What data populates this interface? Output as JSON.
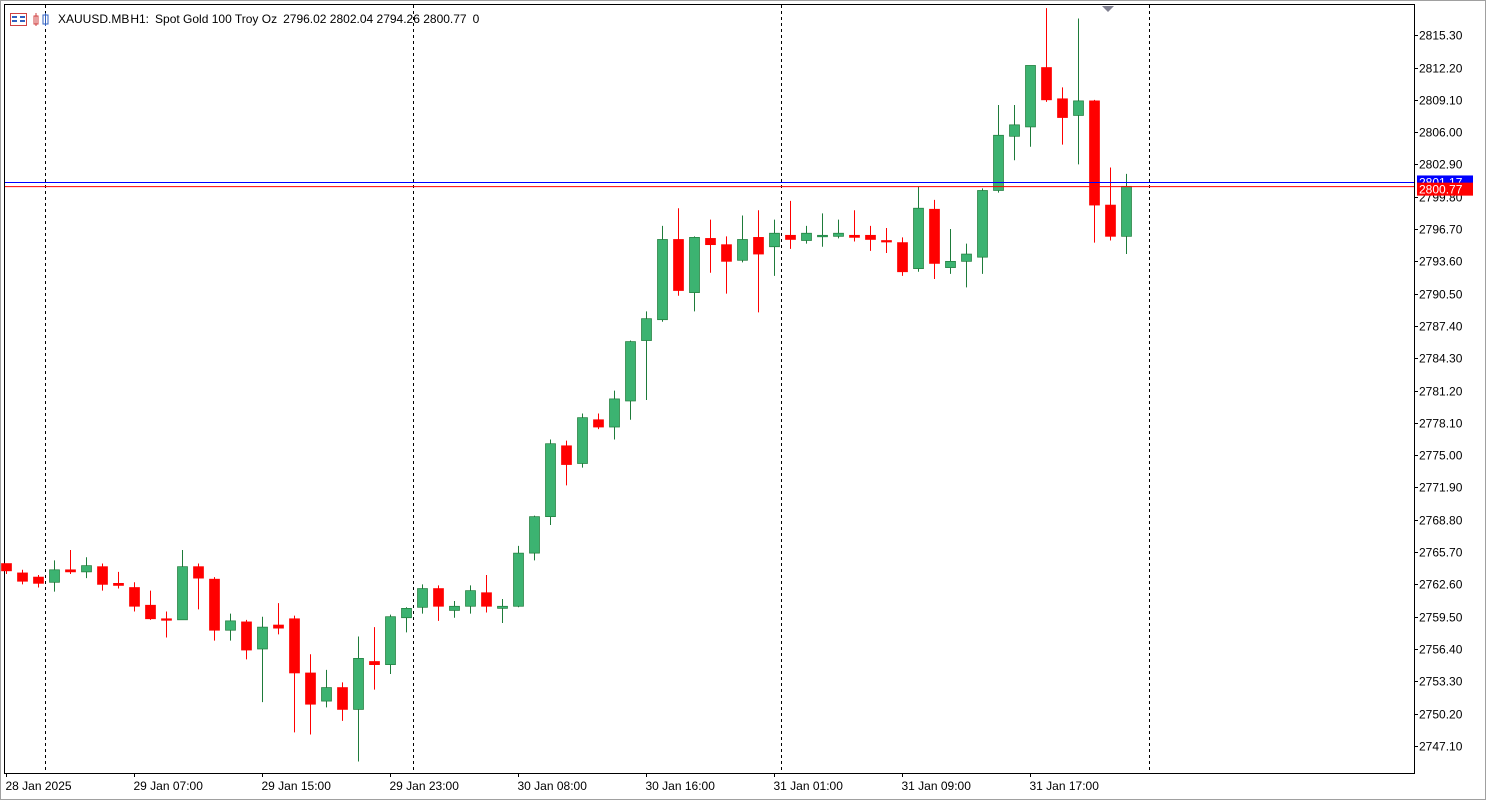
{
  "header": {
    "symbol": "XAUUSD.MB",
    "timeframe": "H1:",
    "description": "Spot Gold 100 Troy Oz",
    "ohlc": "2796.02 2802.04 2794.26 2800.77",
    "volume": "0"
  },
  "colors": {
    "bull": "#3cb371",
    "bear": "#ff0000",
    "bid_line": "#ff0000",
    "ask_line": "#0000ff",
    "grid": "#000000",
    "axis": "#000000"
  },
  "price_labels": {
    "bid": "2800.77",
    "ask": "2801.17"
  },
  "chart_data": {
    "type": "candlestick",
    "timeframe": "H1",
    "ylim": [
      2744.5,
      2818.2
    ],
    "y_ticks": [
      "2815.30",
      "2812.20",
      "2809.10",
      "2806.00",
      "2802.90",
      "2799.80",
      "2796.70",
      "2793.60",
      "2790.50",
      "2787.40",
      "2784.30",
      "2781.20",
      "2778.10",
      "2775.00",
      "2771.90",
      "2768.80",
      "2765.70",
      "2762.60",
      "2759.50",
      "2756.40",
      "2753.30",
      "2750.20",
      "2747.10"
    ],
    "x_labels": [
      {
        "bar": 0,
        "label": "28 Jan 2025"
      },
      {
        "bar": 8,
        "label": "29 Jan 07:00"
      },
      {
        "bar": 16,
        "label": "29 Jan 15:00"
      },
      {
        "bar": 24,
        "label": "29 Jan 23:00"
      },
      {
        "bar": 32,
        "label": "30 Jan 08:00"
      },
      {
        "bar": 40,
        "label": "30 Jan 16:00"
      },
      {
        "bar": 48,
        "label": "31 Jan 01:00"
      },
      {
        "bar": 56,
        "label": "31 Jan 09:00"
      },
      {
        "bar": 64,
        "label": "31 Jan 17:00"
      }
    ],
    "day_separators": [
      2,
      25,
      48,
      71
    ],
    "bid": 2800.77,
    "ask": 2801.17,
    "ohlc": [
      [
        2764.6,
        2764.6,
        2763.6,
        2763.9
      ],
      [
        2763.7,
        2764.0,
        2762.6,
        2762.9
      ],
      [
        2763.3,
        2763.5,
        2762.3,
        2762.7
      ],
      [
        2762.8,
        2764.9,
        2761.9,
        2764.0
      ],
      [
        2764.0,
        2765.9,
        2763.6,
        2763.8
      ],
      [
        2763.8,
        2765.2,
        2763.2,
        2764.4
      ],
      [
        2764.3,
        2764.6,
        2762.0,
        2762.6
      ],
      [
        2762.7,
        2763.8,
        2762.2,
        2762.5
      ],
      [
        2762.3,
        2762.8,
        2760.0,
        2760.5
      ],
      [
        2760.6,
        2762.0,
        2759.2,
        2759.3
      ],
      [
        2759.3,
        2760.0,
        2757.5,
        2759.2
      ],
      [
        2759.2,
        2765.9,
        2759.2,
        2764.3
      ],
      [
        2764.3,
        2764.6,
        2760.2,
        2763.2
      ],
      [
        2763.1,
        2763.3,
        2757.2,
        2758.2
      ],
      [
        2758.2,
        2759.8,
        2757.2,
        2759.1
      ],
      [
        2759.0,
        2759.2,
        2755.4,
        2756.3
      ],
      [
        2756.4,
        2759.5,
        2751.3,
        2758.5
      ],
      [
        2758.7,
        2760.8,
        2757.8,
        2758.4
      ],
      [
        2759.3,
        2759.6,
        2748.4,
        2754.1
      ],
      [
        2754.1,
        2755.9,
        2748.2,
        2751.1
      ],
      [
        2751.4,
        2754.4,
        2750.8,
        2752.7
      ],
      [
        2752.7,
        2753.2,
        2749.5,
        2750.6
      ],
      [
        2750.6,
        2757.6,
        2745.6,
        2755.5
      ],
      [
        2755.2,
        2758.5,
        2752.5,
        2754.9
      ],
      [
        2754.9,
        2759.7,
        2754.0,
        2759.5
      ],
      [
        2759.4,
        2760.4,
        2758.0,
        2760.3
      ],
      [
        2760.4,
        2762.6,
        2759.8,
        2762.2
      ],
      [
        2762.2,
        2762.5,
        2759.1,
        2760.5
      ],
      [
        2760.1,
        2761.0,
        2759.4,
        2760.5
      ],
      [
        2760.5,
        2762.5,
        2759.8,
        2762.0
      ],
      [
        2761.8,
        2763.5,
        2759.9,
        2760.5
      ],
      [
        2760.3,
        2761.2,
        2758.9,
        2760.5
      ],
      [
        2760.5,
        2766.3,
        2760.4,
        2765.6
      ],
      [
        2765.6,
        2769.2,
        2764.9,
        2769.1
      ],
      [
        2769.1,
        2776.5,
        2768.3,
        2776.1
      ],
      [
        2775.9,
        2776.4,
        2772.1,
        2774.1
      ],
      [
        2774.2,
        2779.0,
        2773.8,
        2778.6
      ],
      [
        2778.4,
        2779.0,
        2777.5,
        2777.7
      ],
      [
        2777.7,
        2781.2,
        2776.5,
        2780.4
      ],
      [
        2780.2,
        2786.0,
        2778.4,
        2785.9
      ],
      [
        2786.0,
        2788.8,
        2780.3,
        2788.1
      ],
      [
        2788.0,
        2797.0,
        2787.8,
        2795.7
      ],
      [
        2795.7,
        2798.7,
        2790.3,
        2790.8
      ],
      [
        2790.6,
        2796.0,
        2788.8,
        2795.9
      ],
      [
        2795.8,
        2797.6,
        2792.5,
        2795.2
      ],
      [
        2795.2,
        2796.0,
        2790.5,
        2793.6
      ],
      [
        2793.7,
        2798.0,
        2793.5,
        2795.7
      ],
      [
        2795.9,
        2798.5,
        2788.7,
        2794.3
      ],
      [
        2795.0,
        2797.6,
        2792.2,
        2796.3
      ],
      [
        2796.1,
        2799.4,
        2794.8,
        2795.7
      ],
      [
        2795.6,
        2797.0,
        2795.3,
        2796.3
      ],
      [
        2796.0,
        2798.2,
        2795.0,
        2796.1
      ],
      [
        2796.0,
        2797.6,
        2795.8,
        2796.3
      ],
      [
        2796.1,
        2798.5,
        2795.5,
        2795.9
      ],
      [
        2796.1,
        2797.0,
        2794.6,
        2795.7
      ],
      [
        2795.6,
        2796.8,
        2794.4,
        2795.5
      ],
      [
        2795.4,
        2795.9,
        2792.2,
        2792.6
      ],
      [
        2792.9,
        2800.8,
        2792.6,
        2798.7
      ],
      [
        2798.6,
        2799.5,
        2791.9,
        2793.4
      ],
      [
        2793.0,
        2796.7,
        2792.4,
        2793.6
      ],
      [
        2793.6,
        2795.3,
        2791.1,
        2794.3
      ],
      [
        2794.0,
        2800.6,
        2792.4,
        2800.4
      ],
      [
        2800.4,
        2808.6,
        2800.2,
        2805.7
      ],
      [
        2805.6,
        2808.6,
        2803.3,
        2806.7
      ],
      [
        2806.5,
        2812.4,
        2804.6,
        2812.4
      ],
      [
        2812.2,
        2817.9,
        2808.9,
        2809.1
      ],
      [
        2809.2,
        2810.3,
        2804.8,
        2807.4
      ],
      [
        2807.6,
        2816.9,
        2802.9,
        2809.0
      ],
      [
        2809.0,
        2809.1,
        2795.4,
        2799.0
      ],
      [
        2799.0,
        2802.6,
        2795.6,
        2796.0
      ],
      [
        2796.0,
        2802.0,
        2794.3,
        2800.8
      ]
    ]
  }
}
